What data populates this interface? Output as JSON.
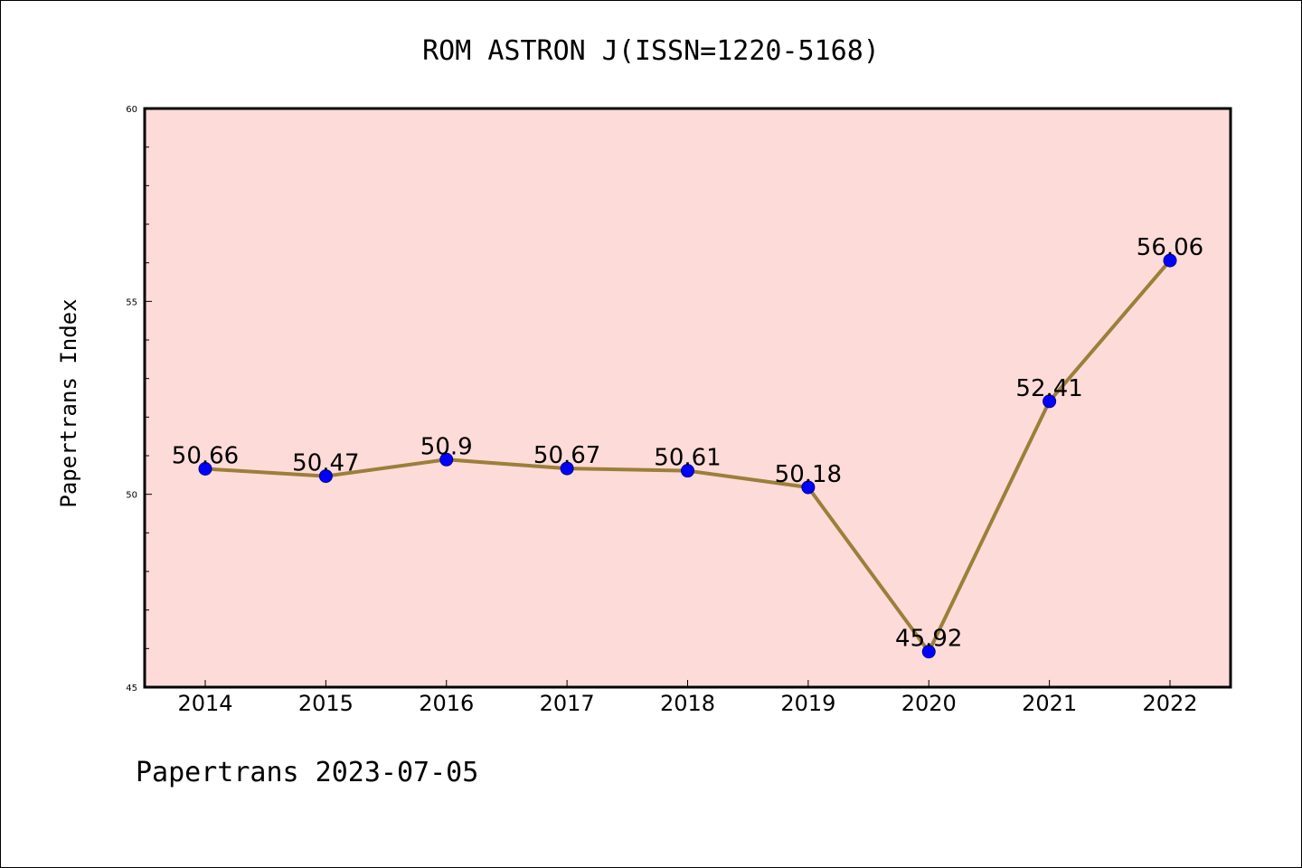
{
  "colors": {
    "plot_background": "#fddbd8",
    "line": "#9b7f3a",
    "marker": "#0000ff",
    "marker_edge": "#00008b"
  },
  "footer": "Papertrans 2023-07-05",
  "chart_data": {
    "type": "line",
    "title": "ROM ASTRON J(ISSN=1220-5168)",
    "xlabel": "",
    "ylabel": "Papertrans Index",
    "categories": [
      "2014",
      "2015",
      "2016",
      "2017",
      "2018",
      "2019",
      "2020",
      "2021",
      "2022"
    ],
    "series": [
      {
        "values": [
          50.66,
          50.47,
          50.9,
          50.67,
          50.61,
          50.18,
          45.92,
          52.41,
          56.06
        ],
        "labels": [
          "50.66",
          "50.47",
          "50.9",
          "50.67",
          "50.61",
          "50.18",
          "45.92",
          "52.41",
          "56.06"
        ]
      }
    ],
    "ylim": [
      45,
      60
    ],
    "yticks_major": [
      45,
      50,
      55,
      60
    ],
    "yticks_minor_step": 1,
    "grid": false,
    "legend": "none"
  }
}
